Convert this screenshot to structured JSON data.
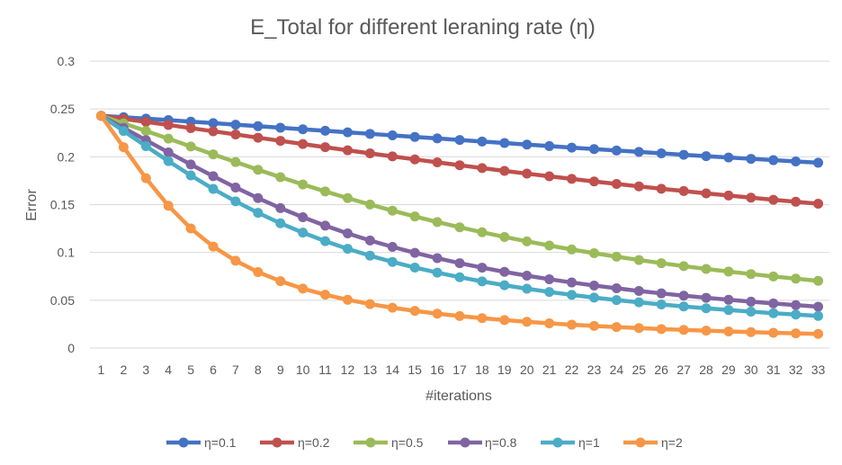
{
  "chart_data": {
    "type": "line",
    "title": "E_Total for different leraning rate (η)",
    "xlabel": "#iterations",
    "ylabel": "Error",
    "ylim": [
      0,
      0.3
    ],
    "yticks": [
      "0",
      "0.05",
      "0.1",
      "0.15",
      "0.2",
      "0.25",
      "0.3"
    ],
    "grid": true,
    "legend_position": "bottom",
    "categories": [
      "1",
      "2",
      "3",
      "4",
      "5",
      "6",
      "7",
      "8",
      "9",
      "10",
      "11",
      "12",
      "13",
      "14",
      "15",
      "16",
      "17",
      "18",
      "19",
      "20",
      "21",
      "22",
      "23",
      "24",
      "25",
      "26",
      "27",
      "28",
      "29",
      "30",
      "31",
      "32",
      "33"
    ],
    "series": [
      {
        "name": "η=0.1",
        "color": "#4472C4",
        "values": [
          0.2429,
          0.2414,
          0.2399,
          0.2384,
          0.2368,
          0.2352,
          0.2336,
          0.232,
          0.2304,
          0.2288,
          0.2272,
          0.2256,
          0.224,
          0.2224,
          0.2208,
          0.2192,
          0.2176,
          0.216,
          0.2144,
          0.2128,
          0.2112,
          0.2096,
          0.2081,
          0.2066,
          0.2051,
          0.2036,
          0.2021,
          0.2007,
          0.1993,
          0.1979,
          0.1965,
          0.1951,
          0.1938
        ]
      },
      {
        "name": "η=0.2",
        "color": "#C0504D",
        "values": [
          0.2429,
          0.2397,
          0.2365,
          0.2333,
          0.23,
          0.2267,
          0.2234,
          0.22,
          0.2167,
          0.2134,
          0.2101,
          0.2068,
          0.2036,
          0.2004,
          0.1973,
          0.1942,
          0.1912,
          0.1882,
          0.1853,
          0.1824,
          0.1796,
          0.1769,
          0.1742,
          0.1716,
          0.1691,
          0.1666,
          0.1642,
          0.1618,
          0.1595,
          0.1573,
          0.1551,
          0.153,
          0.1509
        ]
      },
      {
        "name": "η=0.5",
        "color": "#9BBB59",
        "values": [
          0.2429,
          0.235,
          0.227,
          0.219,
          0.2108,
          0.2026,
          0.1945,
          0.1865,
          0.1787,
          0.1711,
          0.1638,
          0.1568,
          0.1501,
          0.1437,
          0.1376,
          0.1318,
          0.1263,
          0.1211,
          0.1162,
          0.1116,
          0.1072,
          0.1031,
          0.0992,
          0.0956,
          0.0921,
          0.0888,
          0.0857,
          0.0828,
          0.08,
          0.0774,
          0.0749,
          0.0726,
          0.0703
        ]
      },
      {
        "name": "η=0.8",
        "color": "#8064A2",
        "values": [
          0.2429,
          0.2302,
          0.2174,
          0.2046,
          0.192,
          0.1797,
          0.1679,
          0.1568,
          0.1464,
          0.1368,
          0.128,
          0.1199,
          0.1125,
          0.1058,
          0.0996,
          0.094,
          0.0888,
          0.0841,
          0.0797,
          0.0757,
          0.072,
          0.0686,
          0.0654,
          0.0625,
          0.0597,
          0.0572,
          0.0548,
          0.0526,
          0.0505,
          0.0485,
          0.0467,
          0.0449,
          0.0433
        ]
      },
      {
        "name": "η=1",
        "color": "#4BACC6",
        "values": [
          0.2429,
          0.227,
          0.2111,
          0.1955,
          0.1806,
          0.1664,
          0.1534,
          0.1414,
          0.1305,
          0.1207,
          0.1118,
          0.1038,
          0.0966,
          0.0901,
          0.0842,
          0.0789,
          0.0741,
          0.0697,
          0.0657,
          0.0621,
          0.0587,
          0.0556,
          0.0528,
          0.0502,
          0.0478,
          0.0456,
          0.0435,
          0.0416,
          0.0398,
          0.0381,
          0.0365,
          0.035,
          0.0336
        ]
      },
      {
        "name": "η=2",
        "color": "#F79646",
        "values": [
          0.2429,
          0.2101,
          0.1776,
          0.1488,
          0.1251,
          0.1062,
          0.0913,
          0.0795,
          0.07,
          0.0622,
          0.0558,
          0.0505,
          0.046,
          0.0422,
          0.0389,
          0.036,
          0.0335,
          0.0313,
          0.0293,
          0.0275,
          0.0259,
          0.0245,
          0.0232,
          0.022,
          0.0209,
          0.0199,
          0.019,
          0.0182,
          0.0174,
          0.0167,
          0.016,
          0.0154,
          0.0148
        ]
      }
    ]
  }
}
